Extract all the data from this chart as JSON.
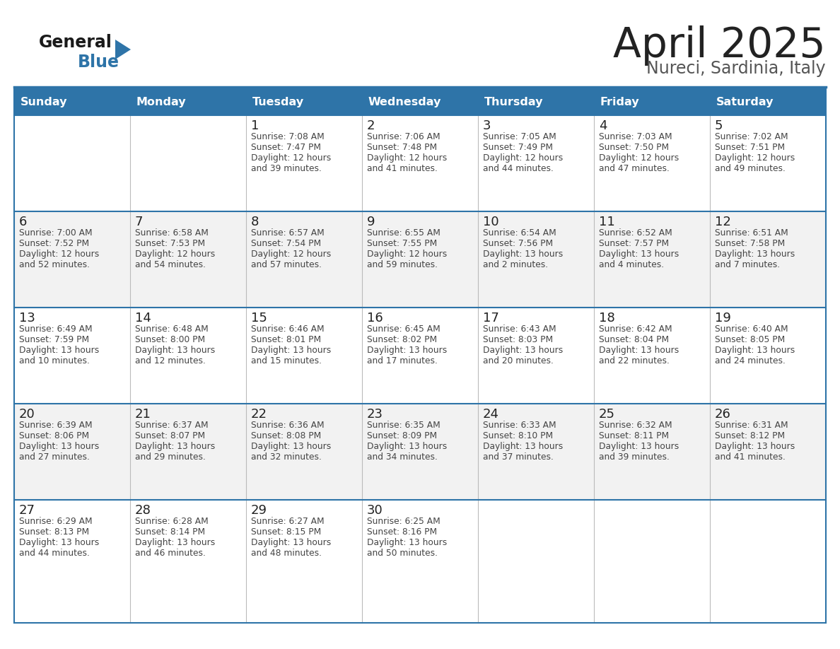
{
  "title": "April 2025",
  "subtitle": "Nureci, Sardinia, Italy",
  "days_of_week": [
    "Sunday",
    "Monday",
    "Tuesday",
    "Wednesday",
    "Thursday",
    "Friday",
    "Saturday"
  ],
  "header_bg": "#2E74A8",
  "header_text_color": "#FFFFFF",
  "row_bg_white": "#FFFFFF",
  "row_bg_gray": "#F2F2F2",
  "border_color": "#2E74A8",
  "thin_border_color": "#BBBBBB",
  "day_number_color": "#222222",
  "cell_text_color": "#444444",
  "title_color": "#222222",
  "subtitle_color": "#555555",
  "logo_general_color": "#1a1a1a",
  "logo_blue_color": "#2E74A8",
  "calendar_data": [
    [
      {
        "day": null,
        "info": ""
      },
      {
        "day": null,
        "info": ""
      },
      {
        "day": 1,
        "info": "Sunrise: 7:08 AM\nSunset: 7:47 PM\nDaylight: 12 hours\nand 39 minutes."
      },
      {
        "day": 2,
        "info": "Sunrise: 7:06 AM\nSunset: 7:48 PM\nDaylight: 12 hours\nand 41 minutes."
      },
      {
        "day": 3,
        "info": "Sunrise: 7:05 AM\nSunset: 7:49 PM\nDaylight: 12 hours\nand 44 minutes."
      },
      {
        "day": 4,
        "info": "Sunrise: 7:03 AM\nSunset: 7:50 PM\nDaylight: 12 hours\nand 47 minutes."
      },
      {
        "day": 5,
        "info": "Sunrise: 7:02 AM\nSunset: 7:51 PM\nDaylight: 12 hours\nand 49 minutes."
      }
    ],
    [
      {
        "day": 6,
        "info": "Sunrise: 7:00 AM\nSunset: 7:52 PM\nDaylight: 12 hours\nand 52 minutes."
      },
      {
        "day": 7,
        "info": "Sunrise: 6:58 AM\nSunset: 7:53 PM\nDaylight: 12 hours\nand 54 minutes."
      },
      {
        "day": 8,
        "info": "Sunrise: 6:57 AM\nSunset: 7:54 PM\nDaylight: 12 hours\nand 57 minutes."
      },
      {
        "day": 9,
        "info": "Sunrise: 6:55 AM\nSunset: 7:55 PM\nDaylight: 12 hours\nand 59 minutes."
      },
      {
        "day": 10,
        "info": "Sunrise: 6:54 AM\nSunset: 7:56 PM\nDaylight: 13 hours\nand 2 minutes."
      },
      {
        "day": 11,
        "info": "Sunrise: 6:52 AM\nSunset: 7:57 PM\nDaylight: 13 hours\nand 4 minutes."
      },
      {
        "day": 12,
        "info": "Sunrise: 6:51 AM\nSunset: 7:58 PM\nDaylight: 13 hours\nand 7 minutes."
      }
    ],
    [
      {
        "day": 13,
        "info": "Sunrise: 6:49 AM\nSunset: 7:59 PM\nDaylight: 13 hours\nand 10 minutes."
      },
      {
        "day": 14,
        "info": "Sunrise: 6:48 AM\nSunset: 8:00 PM\nDaylight: 13 hours\nand 12 minutes."
      },
      {
        "day": 15,
        "info": "Sunrise: 6:46 AM\nSunset: 8:01 PM\nDaylight: 13 hours\nand 15 minutes."
      },
      {
        "day": 16,
        "info": "Sunrise: 6:45 AM\nSunset: 8:02 PM\nDaylight: 13 hours\nand 17 minutes."
      },
      {
        "day": 17,
        "info": "Sunrise: 6:43 AM\nSunset: 8:03 PM\nDaylight: 13 hours\nand 20 minutes."
      },
      {
        "day": 18,
        "info": "Sunrise: 6:42 AM\nSunset: 8:04 PM\nDaylight: 13 hours\nand 22 minutes."
      },
      {
        "day": 19,
        "info": "Sunrise: 6:40 AM\nSunset: 8:05 PM\nDaylight: 13 hours\nand 24 minutes."
      }
    ],
    [
      {
        "day": 20,
        "info": "Sunrise: 6:39 AM\nSunset: 8:06 PM\nDaylight: 13 hours\nand 27 minutes."
      },
      {
        "day": 21,
        "info": "Sunrise: 6:37 AM\nSunset: 8:07 PM\nDaylight: 13 hours\nand 29 minutes."
      },
      {
        "day": 22,
        "info": "Sunrise: 6:36 AM\nSunset: 8:08 PM\nDaylight: 13 hours\nand 32 minutes."
      },
      {
        "day": 23,
        "info": "Sunrise: 6:35 AM\nSunset: 8:09 PM\nDaylight: 13 hours\nand 34 minutes."
      },
      {
        "day": 24,
        "info": "Sunrise: 6:33 AM\nSunset: 8:10 PM\nDaylight: 13 hours\nand 37 minutes."
      },
      {
        "day": 25,
        "info": "Sunrise: 6:32 AM\nSunset: 8:11 PM\nDaylight: 13 hours\nand 39 minutes."
      },
      {
        "day": 26,
        "info": "Sunrise: 6:31 AM\nSunset: 8:12 PM\nDaylight: 13 hours\nand 41 minutes."
      }
    ],
    [
      {
        "day": 27,
        "info": "Sunrise: 6:29 AM\nSunset: 8:13 PM\nDaylight: 13 hours\nand 44 minutes."
      },
      {
        "day": 28,
        "info": "Sunrise: 6:28 AM\nSunset: 8:14 PM\nDaylight: 13 hours\nand 46 minutes."
      },
      {
        "day": 29,
        "info": "Sunrise: 6:27 AM\nSunset: 8:15 PM\nDaylight: 13 hours\nand 48 minutes."
      },
      {
        "day": 30,
        "info": "Sunrise: 6:25 AM\nSunset: 8:16 PM\nDaylight: 13 hours\nand 50 minutes."
      },
      {
        "day": null,
        "info": ""
      },
      {
        "day": null,
        "info": ""
      },
      {
        "day": null,
        "info": ""
      }
    ]
  ]
}
